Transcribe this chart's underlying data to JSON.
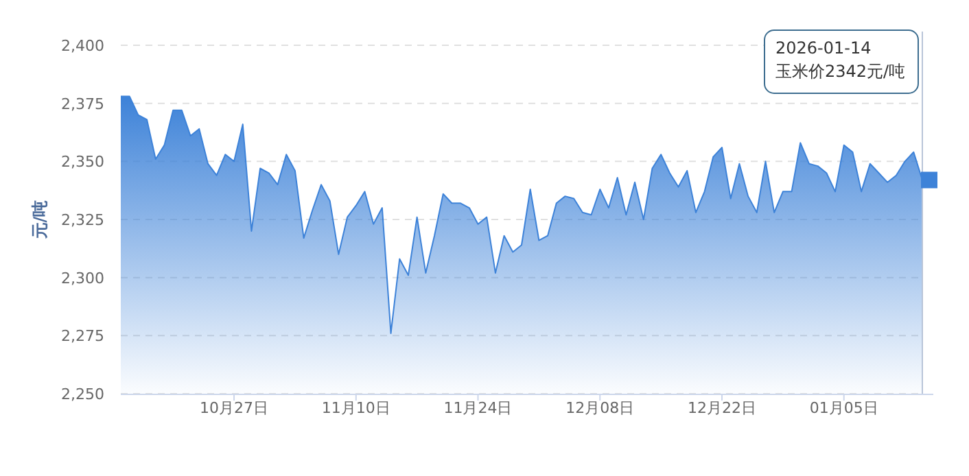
{
  "chart_data": {
    "type": "area",
    "ylabel": "元/吨",
    "x": [
      "2025-10-14",
      "2025-10-15",
      "2025-10-16",
      "2025-10-17",
      "2025-10-18",
      "2025-10-19",
      "2025-10-20",
      "2025-10-21",
      "2025-10-22",
      "2025-10-23",
      "2025-10-24",
      "2025-10-25",
      "2025-10-26",
      "2025-10-27",
      "2025-10-28",
      "2025-10-29",
      "2025-10-30",
      "2025-10-31",
      "2025-11-01",
      "2025-11-02",
      "2025-11-03",
      "2025-11-04",
      "2025-11-05",
      "2025-11-06",
      "2025-11-07",
      "2025-11-08",
      "2025-11-09",
      "2025-11-10",
      "2025-11-11",
      "2025-11-12",
      "2025-11-13",
      "2025-11-14",
      "2025-11-15",
      "2025-11-16",
      "2025-11-17",
      "2025-11-18",
      "2025-11-19",
      "2025-11-20",
      "2025-11-21",
      "2025-11-22",
      "2025-11-23",
      "2025-11-24",
      "2025-11-25",
      "2025-11-26",
      "2025-11-27",
      "2025-11-28",
      "2025-11-29",
      "2025-11-30",
      "2025-12-01",
      "2025-12-02",
      "2025-12-03",
      "2025-12-04",
      "2025-12-05",
      "2025-12-06",
      "2025-12-07",
      "2025-12-08",
      "2025-12-09",
      "2025-12-10",
      "2025-12-11",
      "2025-12-12",
      "2025-12-13",
      "2025-12-14",
      "2025-12-15",
      "2025-12-16",
      "2025-12-17",
      "2025-12-18",
      "2025-12-19",
      "2025-12-20",
      "2025-12-21",
      "2025-12-22",
      "2025-12-23",
      "2025-12-24",
      "2025-12-25",
      "2025-12-26",
      "2025-12-27",
      "2025-12-28",
      "2025-12-29",
      "2025-12-30",
      "2025-12-31",
      "2026-01-01",
      "2026-01-02",
      "2026-01-03",
      "2026-01-04",
      "2026-01-05",
      "2026-01-06",
      "2026-01-07",
      "2026-01-08",
      "2026-01-09",
      "2026-01-10",
      "2026-01-11",
      "2026-01-12",
      "2026-01-13",
      "2026-01-14"
    ],
    "series": [
      {
        "color": "#3d82d8",
        "values": [
          2378,
          2378,
          2370,
          2368,
          2351,
          2357,
          2372,
          2372,
          2361,
          2364,
          2349,
          2344,
          2353,
          2350,
          2366,
          2320,
          2347,
          2345,
          2340,
          2353,
          2346,
          2317,
          2329,
          2340,
          2333,
          2310,
          2326,
          2331,
          2337,
          2323,
          2330,
          2276,
          2308,
          2301,
          2326,
          2302,
          2318,
          2336,
          2332,
          2332,
          2330,
          2323,
          2326,
          2302,
          2318,
          2311,
          2314,
          2338,
          2316,
          2318,
          2332,
          2335,
          2334,
          2328,
          2327,
          2338,
          2330,
          2343,
          2327,
          2341,
          2325,
          2347,
          2353,
          2345,
          2339,
          2346,
          2328,
          2337,
          2352,
          2356,
          2334,
          2349,
          2335,
          2328,
          2350,
          2328,
          2337,
          2337,
          2358,
          2349,
          2348,
          2345,
          2337,
          2357,
          2354,
          2337,
          2349,
          2345,
          2341,
          2344,
          2350,
          2354,
          2342
        ]
      }
    ],
    "xlim": [
      "2025-10-14",
      "2026-01-14"
    ],
    "xticks": [
      {
        "value": "2025-10-27",
        "label": "10月27日"
      },
      {
        "value": "2025-11-10",
        "label": "11月10日"
      },
      {
        "value": "2025-11-24",
        "label": "11月24日"
      },
      {
        "value": "2025-12-08",
        "label": "12月08日"
      },
      {
        "value": "2025-12-22",
        "label": "12月22日"
      },
      {
        "value": "2026-01-05",
        "label": "01月05日"
      }
    ],
    "ylim": [
      2250,
      2400
    ],
    "yticks": [
      {
        "value": 2250,
        "label": "2,250"
      },
      {
        "value": 2275,
        "label": "2,275"
      },
      {
        "value": 2300,
        "label": "2,300"
      },
      {
        "value": 2325,
        "label": "2,325"
      },
      {
        "value": 2350,
        "label": "2,350"
      },
      {
        "value": 2375,
        "label": "2,375"
      },
      {
        "value": 2400,
        "label": "2,400"
      }
    ],
    "grid": "y",
    "marker": "none",
    "annotations": [
      "2026-01-14\n玉米价2342元/吨"
    ]
  }
}
